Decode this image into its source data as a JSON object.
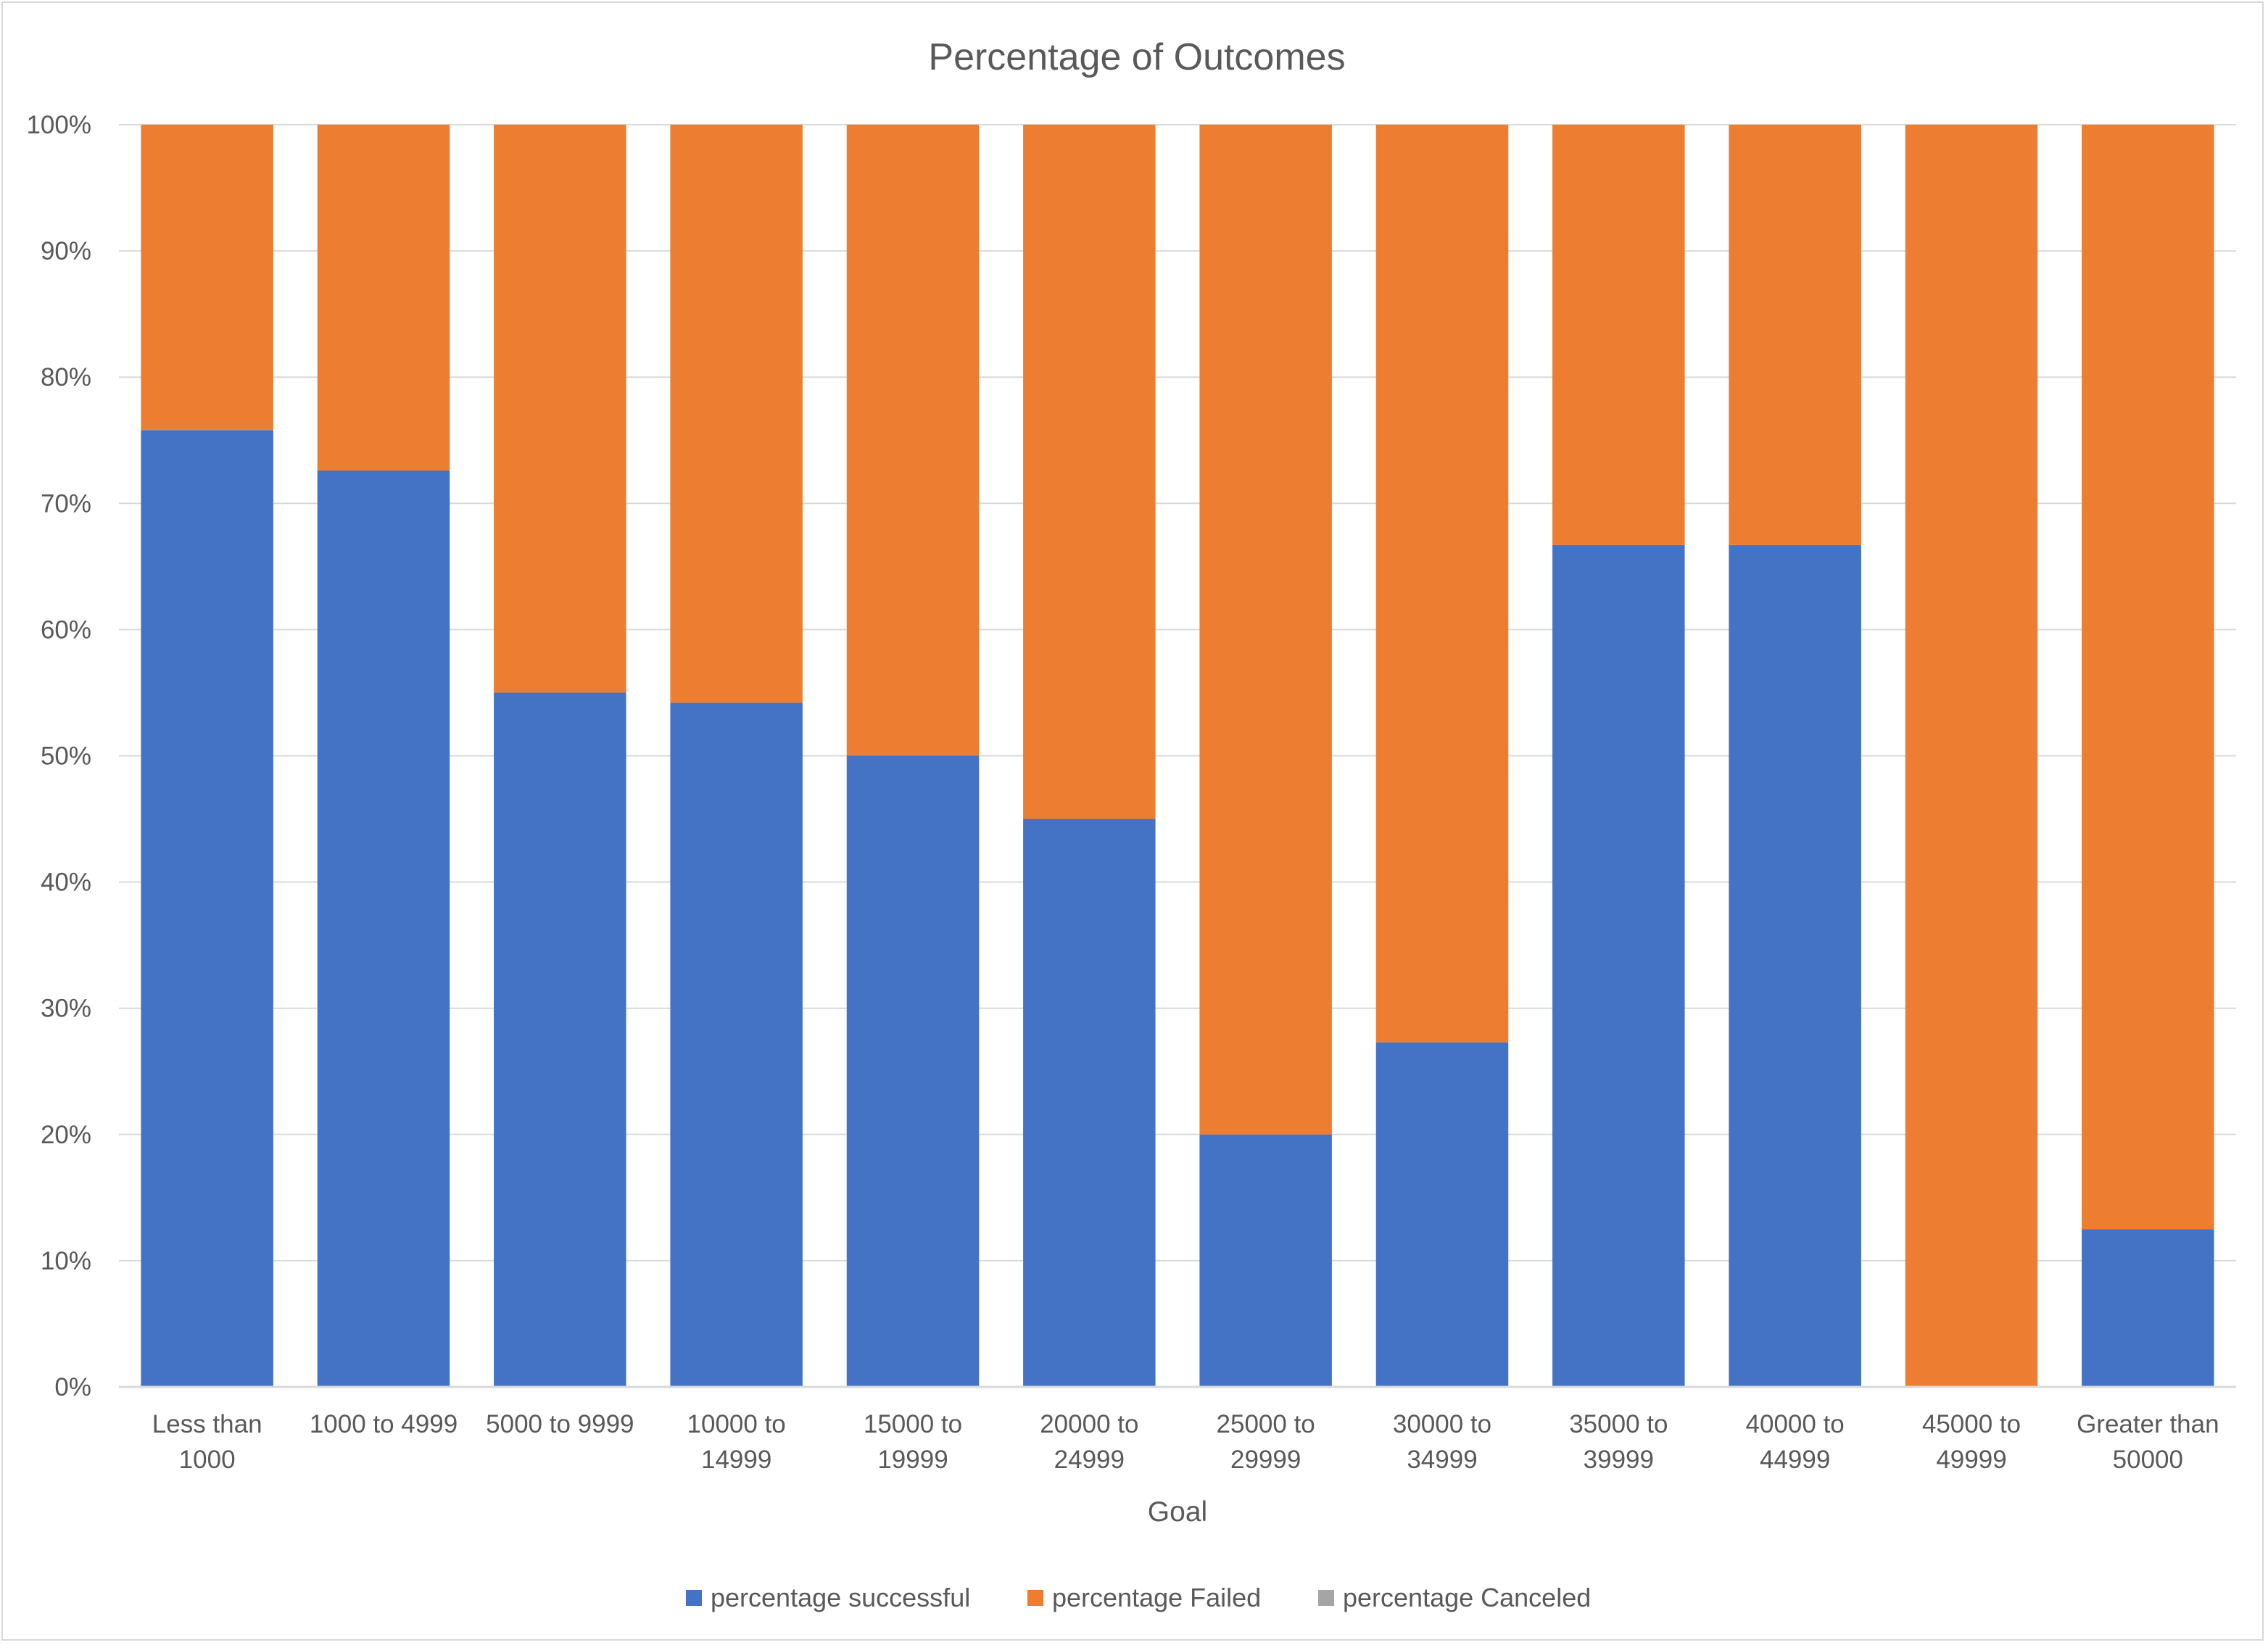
{
  "chart_data": {
    "type": "bar",
    "stacked": "percent",
    "title": "Percentage of Outcomes",
    "xlabel": "Goal",
    "ylabel": "",
    "ylim": [
      0,
      1
    ],
    "yticks": [
      "0%",
      "10%",
      "20%",
      "30%",
      "40%",
      "50%",
      "60%",
      "70%",
      "80%",
      "90%",
      "100%"
    ],
    "grid": true,
    "legend_position": "bottom",
    "categories": [
      [
        "Less than",
        "1000"
      ],
      [
        "1000 to 4999"
      ],
      [
        "5000 to 9999"
      ],
      [
        "10000 to",
        "14999"
      ],
      [
        "15000 to",
        "19999"
      ],
      [
        "20000 to",
        "24999"
      ],
      [
        "25000 to",
        "29999"
      ],
      [
        "30000 to",
        "34999"
      ],
      [
        "35000 to",
        "39999"
      ],
      [
        "40000 to",
        "44999"
      ],
      [
        "45000 to",
        "49999"
      ],
      [
        "Greater than",
        "50000"
      ]
    ],
    "series": [
      {
        "name": "percentage successful",
        "color": "#4472c4",
        "values": [
          0.758,
          0.726,
          0.55,
          0.542,
          0.5,
          0.45,
          0.2,
          0.273,
          0.667,
          0.667,
          0.0,
          0.125
        ]
      },
      {
        "name": "percentage Failed",
        "color": "#ed7d31",
        "values": [
          0.242,
          0.274,
          0.45,
          0.458,
          0.5,
          0.55,
          0.8,
          0.727,
          0.333,
          0.333,
          1.0,
          0.875
        ]
      },
      {
        "name": "percentage Canceled",
        "color": "#a5a5a5",
        "values": [
          0,
          0,
          0,
          0,
          0,
          0,
          0,
          0,
          0,
          0,
          0,
          0
        ]
      }
    ]
  }
}
